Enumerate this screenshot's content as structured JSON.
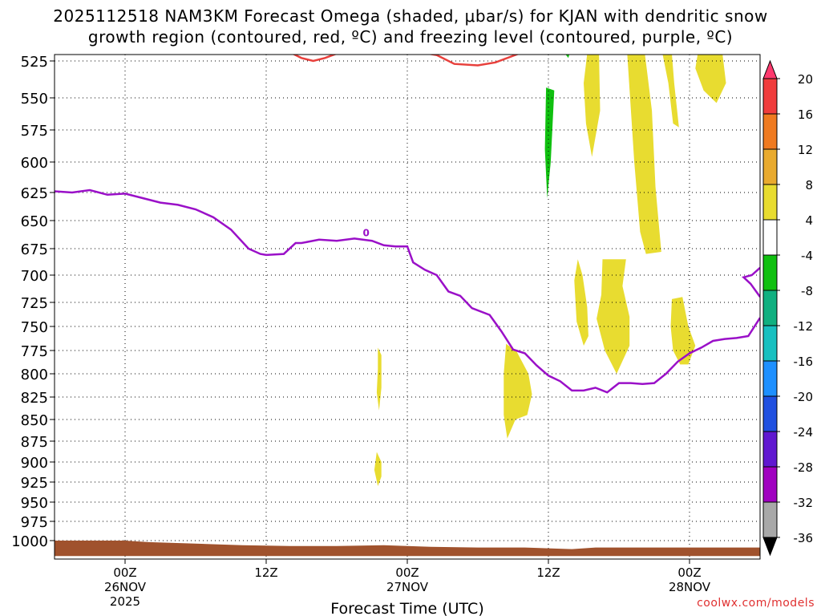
{
  "title_line1": "2025112518 NAM3KM Forecast Omega (shaded, μbar/s) for KJAN with dendritic snow",
  "title_line2": "growth region (contoured, red, ºC) and freezing level (contoured, purple, ºC)",
  "credit": "coolwx.com/models",
  "chart_data": {
    "type": "time-height cross section",
    "xlabel": "Forecast Time (UTC)",
    "ylabel": "",
    "x_ticks": [
      {
        "hour": 6,
        "lines": [
          "00Z",
          "26NOV",
          "2025"
        ]
      },
      {
        "hour": 18,
        "lines": [
          "12Z"
        ]
      },
      {
        "hour": 30,
        "lines": [
          "00Z",
          "27NOV"
        ]
      },
      {
        "hour": 42,
        "lines": [
          "12Z"
        ]
      },
      {
        "hour": 54,
        "lines": [
          "00Z",
          "28NOV"
        ]
      }
    ],
    "xlim": [
      0,
      60
    ],
    "y_levels": [
      525,
      550,
      575,
      600,
      625,
      650,
      675,
      700,
      725,
      750,
      775,
      800,
      825,
      850,
      875,
      900,
      925,
      950,
      975,
      1000
    ],
    "ylim": [
      1000,
      520
    ],
    "grid": true,
    "colorbar": {
      "labels": [
        "20",
        "16",
        "12",
        "8",
        "4",
        "-4",
        "-8",
        "-12",
        "-16",
        "-20",
        "-24",
        "-28",
        "-32",
        "-36"
      ],
      "colors": [
        "#ff3a6e",
        "#f03c3c",
        "#ef7a20",
        "#e9aa2e",
        "#e8dc30",
        "#ffffff",
        "#10c010",
        "#10b080",
        "#18c0c0",
        "#1e90ff",
        "#2050e0",
        "#6018d0",
        "#a000c0",
        "#a8a8a8",
        "#000000"
      ]
    },
    "colors": {
      "omega_positive": "#e8dc30",
      "omega_negative": "#10c010",
      "dgz_line": "#e8403c",
      "freezing_line": "#9a10c8",
      "terrain": "#a0522d"
    },
    "freezing_level_label": "0",
    "freezing_level": [
      [
        0,
        624
      ],
      [
        1.5,
        625
      ],
      [
        3,
        623
      ],
      [
        4.5,
        627
      ],
      [
        6,
        626
      ],
      [
        7.5,
        630
      ],
      [
        9,
        634
      ],
      [
        10.5,
        636
      ],
      [
        12,
        640
      ],
      [
        13.5,
        647
      ],
      [
        15,
        658
      ],
      [
        16.5,
        675
      ],
      [
        17.5,
        680
      ],
      [
        18,
        681
      ],
      [
        19.5,
        680
      ],
      [
        20.5,
        670
      ],
      [
        21,
        670
      ],
      [
        22.5,
        667
      ],
      [
        24,
        668
      ],
      [
        25.5,
        666
      ],
      [
        27,
        668
      ],
      [
        28,
        672
      ],
      [
        29,
        673
      ],
      [
        30,
        673
      ],
      [
        30.5,
        688
      ],
      [
        31.5,
        695
      ],
      [
        32.5,
        700
      ],
      [
        33.5,
        715
      ],
      [
        34.5,
        719
      ],
      [
        35.5,
        731
      ],
      [
        37,
        738
      ],
      [
        38,
        755
      ],
      [
        39,
        774
      ],
      [
        40,
        778
      ],
      [
        41,
        791
      ],
      [
        42,
        802
      ],
      [
        43,
        808
      ],
      [
        44,
        818
      ],
      [
        45,
        818
      ],
      [
        46,
        815
      ],
      [
        47,
        820
      ],
      [
        48,
        810
      ],
      [
        49,
        810
      ],
      [
        50,
        811
      ],
      [
        51,
        810
      ],
      [
        52,
        800
      ],
      [
        53,
        787
      ],
      [
        54,
        778
      ],
      [
        55,
        772
      ],
      [
        56,
        765
      ],
      [
        57,
        763
      ],
      [
        58,
        762
      ],
      [
        59,
        760
      ],
      [
        60,
        741
      ]
    ],
    "freezing_level_right_loop": [
      [
        60,
        693
      ],
      [
        59.3,
        700
      ],
      [
        58.6,
        702
      ],
      [
        59.2,
        708
      ],
      [
        60,
        720
      ]
    ],
    "dgz_contour": [
      [
        20,
        519
      ],
      [
        21,
        523
      ],
      [
        22,
        525
      ],
      [
        23,
        523
      ],
      [
        24,
        520
      ],
      [
        25,
        520
      ],
      [
        26,
        520
      ],
      [
        27,
        519
      ],
      [
        29,
        518
      ],
      [
        31,
        519
      ],
      [
        32.5,
        521
      ],
      [
        34,
        527
      ],
      [
        36,
        528
      ],
      [
        37.5,
        526
      ],
      [
        39.5,
        520
      ],
      [
        41,
        518
      ]
    ],
    "omega_regions": [
      {
        "sign": "positive",
        "points": [
          [
            45.3,
            520
          ],
          [
            46.3,
            520
          ],
          [
            46.4,
            560
          ],
          [
            45.7,
            596
          ],
          [
            45.2,
            570
          ],
          [
            45.0,
            540
          ]
        ]
      },
      {
        "sign": "positive",
        "points": [
          [
            48.7,
            520
          ],
          [
            50.2,
            520
          ],
          [
            50.8,
            560
          ],
          [
            51.1,
            620
          ],
          [
            51.6,
            678
          ],
          [
            50.3,
            680
          ],
          [
            49.8,
            660
          ],
          [
            49.3,
            600
          ]
        ]
      },
      {
        "sign": "positive",
        "points": [
          [
            51.7,
            520
          ],
          [
            52.5,
            520
          ],
          [
            52.7,
            540
          ],
          [
            53.1,
            573
          ],
          [
            52.6,
            570
          ],
          [
            52.2,
            540
          ]
        ]
      },
      {
        "sign": "positive",
        "points": [
          [
            54.7,
            520
          ],
          [
            56.8,
            520
          ],
          [
            57.1,
            540
          ],
          [
            56.3,
            554
          ],
          [
            55.2,
            545
          ],
          [
            54.5,
            530
          ]
        ]
      },
      {
        "sign": "negative",
        "points": [
          [
            41.8,
            543
          ],
          [
            42.5,
            545
          ],
          [
            42.2,
            600
          ],
          [
            41.9,
            630
          ],
          [
            41.7,
            590
          ]
        ]
      },
      {
        "sign": "negative",
        "points": [
          [
            43.4,
            520
          ],
          [
            43.8,
            520
          ],
          [
            43.7,
            523
          ]
        ]
      },
      {
        "sign": "positive",
        "points": [
          [
            44.5,
            685
          ],
          [
            44.9,
            700
          ],
          [
            45.3,
            730
          ],
          [
            45.4,
            760
          ],
          [
            45.0,
            770
          ],
          [
            44.4,
            745
          ],
          [
            44.2,
            705
          ]
        ]
      },
      {
        "sign": "positive",
        "points": [
          [
            46.6,
            685
          ],
          [
            48.6,
            685
          ],
          [
            48.3,
            710
          ],
          [
            48.9,
            740
          ],
          [
            48.9,
            770
          ],
          [
            47.8,
            800
          ],
          [
            46.8,
            775
          ],
          [
            46.1,
            742
          ],
          [
            46.5,
            718
          ]
        ]
      },
      {
        "sign": "positive",
        "points": [
          [
            52.5,
            722
          ],
          [
            53.4,
            720
          ],
          [
            53.9,
            750
          ],
          [
            54.5,
            770
          ],
          [
            53.9,
            790
          ],
          [
            53.2,
            790
          ],
          [
            52.6,
            775
          ],
          [
            52.4,
            750
          ]
        ]
      },
      {
        "sign": "positive",
        "points": [
          [
            38.4,
            768
          ],
          [
            39.3,
            776
          ],
          [
            40.3,
            800
          ],
          [
            40.6,
            822
          ],
          [
            40.2,
            845
          ],
          [
            39.2,
            850
          ],
          [
            38.5,
            872
          ],
          [
            38.2,
            845
          ],
          [
            38.2,
            800
          ]
        ]
      },
      {
        "sign": "positive",
        "points": [
          [
            27.5,
            772
          ],
          [
            27.8,
            780
          ],
          [
            27.8,
            815
          ],
          [
            27.6,
            840
          ],
          [
            27.4,
            820
          ],
          [
            27.5,
            795
          ]
        ]
      },
      {
        "sign": "positive",
        "points": [
          [
            27.4,
            888
          ],
          [
            27.8,
            900
          ],
          [
            27.8,
            918
          ],
          [
            27.5,
            930
          ],
          [
            27.2,
            910
          ]
        ]
      }
    ],
    "terrain_top": [
      [
        0,
        1000
      ],
      [
        6,
        1000
      ],
      [
        8,
        1002
      ],
      [
        12,
        1004
      ],
      [
        16,
        1006
      ],
      [
        20,
        1007
      ],
      [
        24,
        1007
      ],
      [
        28,
        1006
      ],
      [
        30,
        1007
      ],
      [
        32,
        1008
      ],
      [
        36,
        1009
      ],
      [
        40,
        1009
      ],
      [
        44,
        1011
      ],
      [
        46,
        1009
      ],
      [
        50,
        1009
      ],
      [
        54,
        1009
      ],
      [
        58,
        1009
      ],
      [
        60,
        1009
      ]
    ],
    "terrain_bottom": 1020
  }
}
